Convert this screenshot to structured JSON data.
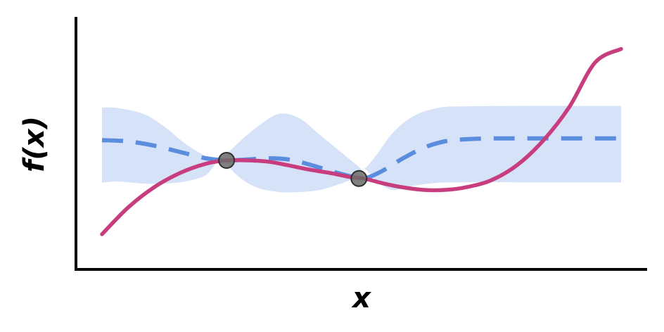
{
  "chart_data": {
    "type": "line",
    "title": "",
    "xlabel": "x",
    "ylabel": "f(x)",
    "xlim": [
      0,
      10
    ],
    "ylim": [
      -3,
      3
    ],
    "grid": false,
    "legend": "none",
    "series": [
      {
        "role": "uncertainty-band",
        "color": "#d6e2f7",
        "x": [
          0.0,
          0.3,
          0.8,
          1.2,
          1.6,
          2.0,
          2.25,
          2.4,
          2.7,
          3.0,
          3.4,
          3.8,
          4.2,
          4.6,
          4.9,
          5.05,
          5.3,
          5.6,
          6.0,
          6.5,
          7.0,
          8.0,
          9.0,
          10.0
        ],
        "upper": [
          0.75,
          0.74,
          0.6,
          0.3,
          -0.1,
          -0.4,
          -0.5,
          -0.35,
          0.0,
          0.3,
          0.6,
          0.5,
          0.1,
          -0.3,
          -0.6,
          -0.7,
          -0.35,
          0.15,
          0.55,
          0.75,
          0.78,
          0.79,
          0.79,
          0.79
        ],
        "lower": [
          -1.03,
          -1.0,
          -1.05,
          -1.05,
          -1.0,
          -0.85,
          -0.5,
          -0.62,
          -0.95,
          -1.15,
          -1.25,
          -1.25,
          -1.2,
          -1.05,
          -0.9,
          -0.7,
          -1.0,
          -1.2,
          -1.1,
          -1.03,
          -1.02,
          -1.02,
          -1.02,
          -1.02
        ]
      },
      {
        "role": "mean",
        "style": "dashed",
        "color": "#5b8dde",
        "x": [
          0.0,
          0.5,
          1.0,
          1.5,
          2.0,
          2.4,
          2.8,
          3.2,
          3.6,
          4.0,
          4.4,
          4.8,
          5.05,
          5.4,
          5.8,
          6.2,
          6.6,
          7.0,
          7.5,
          8.0,
          9.0,
          10.0
        ],
        "y": [
          -0.02,
          -0.05,
          -0.15,
          -0.3,
          -0.45,
          -0.5,
          -0.48,
          -0.45,
          -0.48,
          -0.6,
          -0.75,
          -0.88,
          -0.93,
          -0.75,
          -0.45,
          -0.2,
          -0.05,
          0.0,
          0.02,
          0.02,
          0.02,
          0.02
        ]
      },
      {
        "role": "true-function",
        "color": "#c73d7e",
        "x": [
          0.0,
          0.5,
          1.0,
          1.5,
          2.0,
          2.4,
          2.8,
          3.2,
          3.6,
          4.0,
          4.4,
          4.8,
          5.05,
          5.4,
          5.8,
          6.2,
          6.6,
          7.0,
          7.5,
          8.0,
          8.5,
          9.0,
          9.5,
          10.0
        ],
        "y": [
          -2.25,
          -1.62,
          -1.14,
          -0.8,
          -0.58,
          -0.5,
          -0.5,
          -0.53,
          -0.62,
          -0.72,
          -0.8,
          -0.9,
          -0.93,
          -1.04,
          -1.14,
          -1.2,
          -1.2,
          -1.14,
          -0.97,
          -0.61,
          -0.03,
          0.76,
          1.82,
          2.14
        ]
      }
    ],
    "observations": {
      "color": "#6b6b6b",
      "x": [
        2.4,
        4.95
      ],
      "y": [
        -0.5,
        -0.93
      ]
    }
  }
}
